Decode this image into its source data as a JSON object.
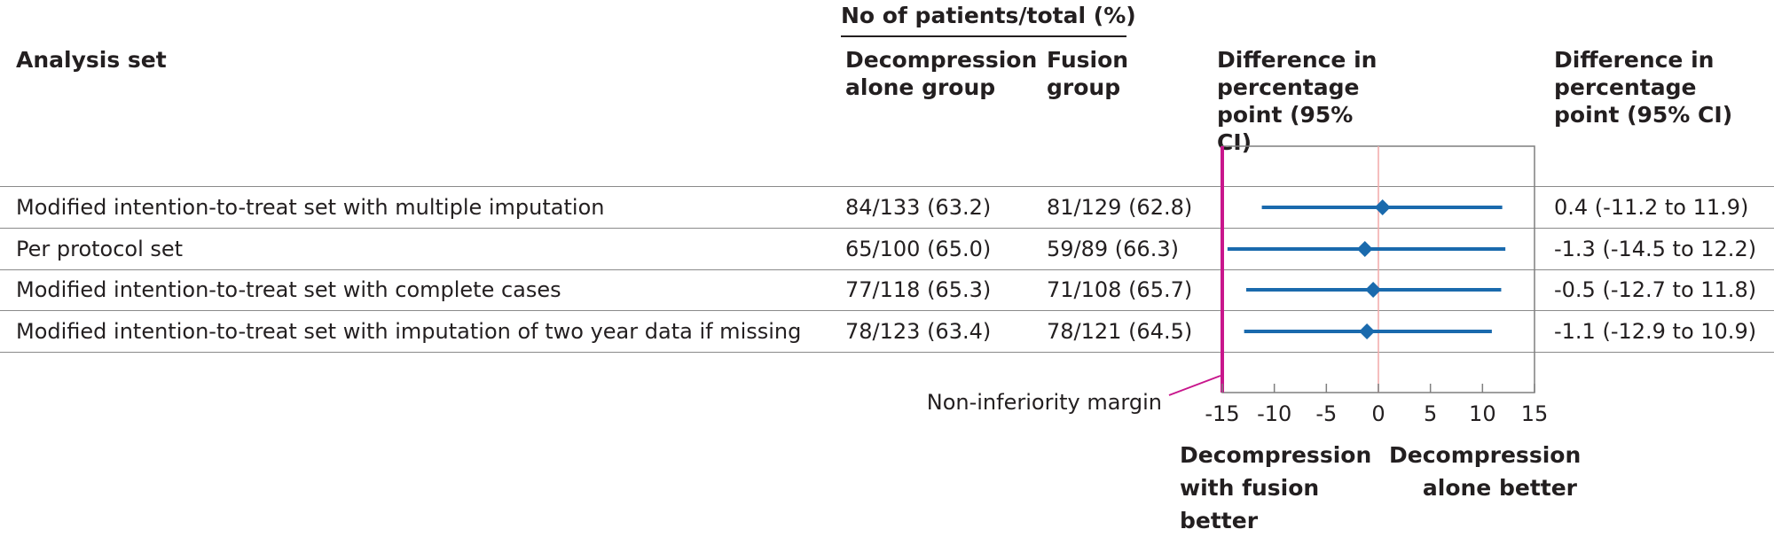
{
  "header": {
    "group_caption": "No of patients/total (%)",
    "col_analysis": "Analysis set",
    "col_decompression": "Decompression alone group",
    "col_fusion": "Fusion group",
    "col_difference_plot": "Difference in percentage point (95% CI)",
    "col_difference_text": "Difference in percentage point (95% CI)"
  },
  "rows": [
    {
      "label": "Modified intention-to-treat set with multiple imputation",
      "decompression": "84/133 (63.2)",
      "fusion": "81/129 (62.8)",
      "ci_text": "0.4 (-11.2 to 11.9)"
    },
    {
      "label": "Per protocol set",
      "decompression": "65/100 (65.0)",
      "fusion": "59/89 (66.3)",
      "ci_text": "-1.3 (-14.5 to 12.2)"
    },
    {
      "label": "Modified intention-to-treat set with complete cases",
      "decompression": "77/118 (65.3)",
      "fusion": "71/108 (65.7)",
      "ci_text": "-0.5 (-12.7 to 11.8)"
    },
    {
      "label": "Modified intention-to-treat set with imputation of two year data if missing",
      "decompression": "78/123 (63.4)",
      "fusion": "78/121 (64.5)",
      "ci_text": "-1.1 (-12.9 to 10.9)"
    }
  ],
  "chart_data": {
    "type": "forest",
    "x_ticks": [
      -15,
      -10,
      -5,
      0,
      5,
      10,
      15
    ],
    "x_tick_labels": [
      "-15",
      "-10",
      "-5",
      "0",
      "5",
      "10",
      "15"
    ],
    "xlim": [
      -15,
      15
    ],
    "reference_line": 0,
    "non_inferiority_margin": -15,
    "non_inferiority_label": "Non-inferiority margin",
    "series": [
      {
        "categories": [
          "Modified intention-to-treat set with multiple imputation",
          "Per protocol set",
          "Modified intention-to-treat set with complete cases",
          "Modified intention-to-treat set with imputation of two year data if missing"
        ],
        "estimate": [
          0.4,
          -1.3,
          -0.5,
          -1.1
        ],
        "lower": [
          -11.2,
          -14.5,
          -12.7,
          -12.9
        ],
        "upper": [
          11.9,
          12.2,
          11.8,
          10.9
        ]
      }
    ],
    "colors": {
      "marker": "#1a6aad",
      "ci_line": "#1a6aad",
      "reference": "#f2a9a9",
      "margin": "#c8168c",
      "box": "#7f7f7f"
    }
  },
  "footer": {
    "left_favours": [
      "Decompression",
      "with fusion",
      "better"
    ],
    "right_favours": [
      "Decompression",
      "alone better"
    ]
  }
}
